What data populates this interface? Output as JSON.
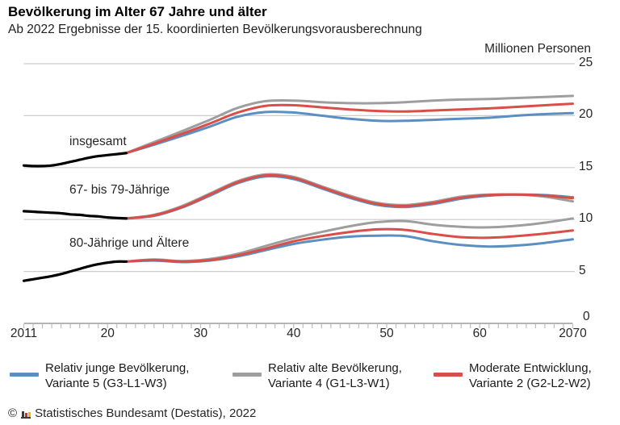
{
  "header": {
    "title": "Bevölkerung im Alter 67 Jahre und älter",
    "subtitle": "Ab 2022 Ergebnisse der 15. koordinierten Bevölkerungsvorausberechnung"
  },
  "colors": {
    "blue": "#5b8fc2",
    "gray": "#9e9e9e",
    "red": "#da4e48",
    "black": "#000000",
    "grid": "#cccccc",
    "axis": "#a9a9a9",
    "tick": "#bdbdbd"
  },
  "legend": {
    "items": [
      {
        "color_key": "blue",
        "line1": "Relativ junge Bevölkerung,",
        "line2": "Variante 5 (G3-L1-W3)"
      },
      {
        "color_key": "gray",
        "line1": "Relativ alte Bevölkerung,",
        "line2": "Variante 4 (G1-L3-W1)"
      },
      {
        "color_key": "red",
        "line1": "Moderate Entwicklung,",
        "line2": "Variante 2 (G2-L2-W2)"
      }
    ]
  },
  "footer": {
    "copyright_symbol": "©",
    "text": "Statistisches Bundesamt (Destatis), 2022"
  },
  "chart_data": {
    "type": "line",
    "title": "Bevölkerung im Alter 67 Jahre und älter",
    "ylabel": "Millionen Personen",
    "xlabel": "",
    "x_range": [
      2011,
      2070
    ],
    "y_range": [
      0,
      25
    ],
    "grid": true,
    "legend_position": "bottom",
    "y_ticks": [
      {
        "v": 25,
        "label": "25"
      },
      {
        "v": 20,
        "label": "20"
      },
      {
        "v": 15,
        "label": "15"
      },
      {
        "v": 10,
        "label": "10"
      },
      {
        "v": 5,
        "label": "5"
      },
      {
        "v": 0,
        "label": "0"
      }
    ],
    "x_ticks_major": [
      {
        "year": 2011,
        "label": "2011"
      },
      {
        "year": 2020,
        "label": "20"
      },
      {
        "year": 2030,
        "label": "30"
      },
      {
        "year": 2040,
        "label": "40"
      },
      {
        "year": 2050,
        "label": "50"
      },
      {
        "year": 2060,
        "label": "60"
      },
      {
        "year": 2070,
        "label": "2070"
      }
    ],
    "x_minor_tick_every_year": true,
    "projection_years": [
      2022,
      2025,
      2028,
      2031,
      2034,
      2037,
      2040,
      2043,
      2046,
      2049,
      2052,
      2055,
      2058,
      2061,
      2064,
      2067,
      2070
    ],
    "history_years": [
      2011,
      2012,
      2013,
      2014,
      2015,
      2016,
      2017,
      2018,
      2019,
      2020,
      2021,
      2022
    ],
    "groups": [
      {
        "label": "insgesamt",
        "history_values": [
          15.2,
          15.15,
          15.15,
          15.2,
          15.35,
          15.55,
          15.75,
          15.95,
          16.1,
          16.2,
          16.3,
          16.4
        ],
        "series": [
          {
            "name": "Variante 4 (G1-L3-W1)",
            "color_key": "gray",
            "values": [
              16.4,
              17.45,
              18.5,
              19.6,
              20.75,
              21.4,
              21.45,
              21.3,
              21.2,
              21.2,
              21.3,
              21.45,
              21.55,
              21.6,
              21.7,
              21.8,
              21.9
            ]
          },
          {
            "name": "Variante 5 (G3-L1-W3)",
            "color_key": "blue",
            "values": [
              16.4,
              17.2,
              18.05,
              18.95,
              19.9,
              20.35,
              20.3,
              20.0,
              19.7,
              19.5,
              19.5,
              19.6,
              19.7,
              19.8,
              20.0,
              20.15,
              20.25
            ]
          },
          {
            "name": "Variante 2 (G2-L2-W2)",
            "color_key": "red",
            "values": [
              16.4,
              17.3,
              18.25,
              19.25,
              20.3,
              20.95,
              21.0,
              20.8,
              20.6,
              20.45,
              20.4,
              20.5,
              20.6,
              20.7,
              20.85,
              21.0,
              21.15
            ]
          }
        ]
      },
      {
        "label": "67- bis 79-Jährige",
        "history_values": [
          10.8,
          10.75,
          10.7,
          10.65,
          10.6,
          10.5,
          10.45,
          10.35,
          10.3,
          10.2,
          10.15,
          10.1
        ],
        "series": [
          {
            "name": "Variante 4 (G1-L3-W1)",
            "color_key": "gray",
            "values": [
              10.1,
              10.45,
              11.3,
              12.5,
              13.7,
              14.35,
              14.1,
              13.2,
              12.3,
              11.6,
              11.4,
              11.7,
              12.2,
              12.4,
              12.4,
              12.2,
              11.75
            ]
          },
          {
            "name": "Variante 5 (G3-L1-W3)",
            "color_key": "blue",
            "values": [
              10.1,
              10.35,
              11.15,
              12.3,
              13.5,
              14.15,
              13.9,
              13.0,
              12.1,
              11.4,
              11.2,
              11.5,
              12.0,
              12.3,
              12.4,
              12.35,
              12.15
            ]
          },
          {
            "name": "Variante 2 (G2-L2-W2)",
            "color_key": "red",
            "values": [
              10.1,
              10.4,
              11.2,
              12.4,
              13.6,
              14.25,
              14.0,
              13.1,
              12.2,
              11.5,
              11.3,
              11.6,
              12.1,
              12.35,
              12.4,
              12.3,
              12.05
            ]
          }
        ]
      },
      {
        "label": "80-Jährige und Ältere",
        "history_values": [
          4.1,
          4.25,
          4.4,
          4.55,
          4.75,
          5.0,
          5.25,
          5.5,
          5.7,
          5.85,
          5.95,
          5.95
        ],
        "series": [
          {
            "name": "Variante 4 (G1-L3-W1)",
            "color_key": "gray",
            "values": [
              5.95,
              6.15,
              6.0,
              6.2,
              6.7,
              7.45,
              8.2,
              8.8,
              9.35,
              9.75,
              9.85,
              9.5,
              9.3,
              9.25,
              9.4,
              9.7,
              10.1
            ]
          },
          {
            "name": "Variante 5 (G3-L1-W3)",
            "color_key": "blue",
            "values": [
              5.95,
              6.05,
              5.9,
              6.05,
              6.45,
              7.05,
              7.65,
              8.05,
              8.35,
              8.45,
              8.4,
              7.9,
              7.55,
              7.4,
              7.5,
              7.75,
              8.1
            ]
          },
          {
            "name": "Variante 2 (G2-L2-W2)",
            "color_key": "red",
            "values": [
              5.95,
              6.1,
              5.95,
              6.1,
              6.55,
              7.2,
              7.9,
              8.4,
              8.8,
              9.05,
              9.0,
              8.6,
              8.3,
              8.25,
              8.4,
              8.65,
              8.95
            ]
          }
        ]
      }
    ]
  }
}
